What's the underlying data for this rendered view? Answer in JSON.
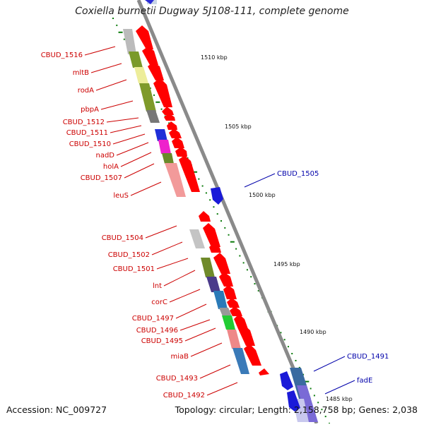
{
  "map": {
    "title": "Coxiella burnetii Dugway 5J108-111, complete genome",
    "accession": "Accession: NC_009727",
    "summary": "Topology: circular; Length: 2,158,758 bp; Genes: 2,038"
  },
  "colors": {
    "forward_arrow": "#ff0000",
    "reverse_arrow": "#0000ee",
    "forward_label": "#cc0000",
    "reverse_label": "#0000aa",
    "backbone": "#888888",
    "tick": "#0a7a0a"
  },
  "ticks": [
    "1510 kbp",
    "1505 kbp",
    "1500 kbp",
    "1495 kbp",
    "1490 kbp",
    "1485 kbp"
  ],
  "genes_forward": [
    "CBUD_1516",
    "mltB",
    "rodA",
    "pbpA",
    "CBUD_1512",
    "CBUD_1511",
    "CBUD_1510",
    "nadD",
    "holA",
    "CBUD_1507",
    "leuS",
    "CBUD_1504",
    "CBUD_1502",
    "CBUD_1501",
    "lnt",
    "corC",
    "CBUD_1497",
    "CBUD_1496",
    "CBUD_1495",
    "miaB",
    "CBUD_1493",
    "CBUD_1492"
  ],
  "genes_reverse": [
    "CBUD_1505",
    "CBUD_1491",
    "fadE"
  ]
}
